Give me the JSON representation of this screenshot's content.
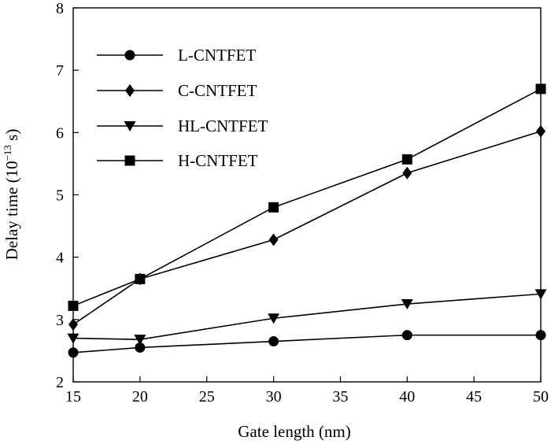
{
  "chart_data": {
    "type": "line",
    "title": "",
    "xlabel": "Gate length (nm)",
    "ylabel_main": "Delay time (10",
    "ylabel_exponent": "−13",
    "ylabel_unit": " s)",
    "xlim": [
      15,
      50
    ],
    "ylim": [
      2,
      8
    ],
    "xticks": [
      15,
      20,
      25,
      30,
      35,
      40,
      45,
      50
    ],
    "yticks": [
      2,
      3,
      4,
      5,
      6,
      7,
      8
    ],
    "grid": false,
    "legend_position": "top-left",
    "x": [
      15,
      20,
      30,
      40,
      50
    ],
    "series": [
      {
        "name": "L-CNTFET",
        "marker": "circle",
        "values": [
          2.47,
          2.55,
          2.65,
          2.75,
          2.75
        ]
      },
      {
        "name": "C-CNTFET",
        "marker": "diamond",
        "values": [
          2.92,
          3.65,
          4.28,
          5.35,
          6.02
        ]
      },
      {
        "name": "HL-CNTFET",
        "marker": "triangle-down",
        "values": [
          2.7,
          2.68,
          3.02,
          3.25,
          3.41
        ]
      },
      {
        "name": "H-CNTFET",
        "marker": "square",
        "values": [
          3.22,
          3.65,
          4.8,
          5.57,
          6.7
        ]
      }
    ]
  }
}
